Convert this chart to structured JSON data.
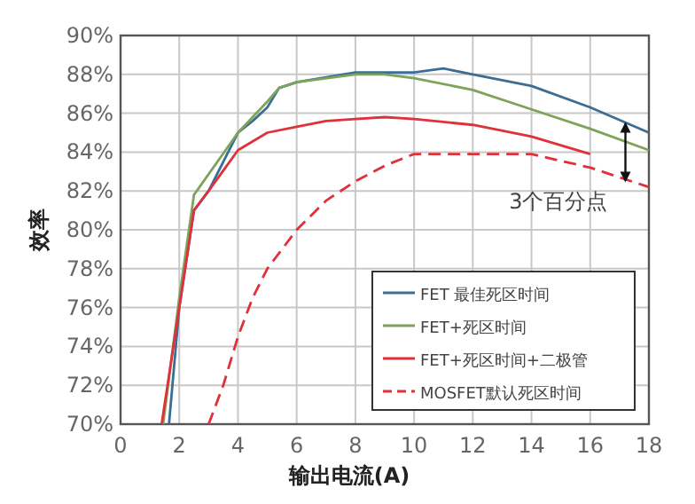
{
  "chart_data": {
    "type": "line",
    "xlabel": "输出电流(A)",
    "ylabel": "效率",
    "xlim": [
      0,
      18
    ],
    "xticks": [
      0,
      2,
      4,
      6,
      8,
      10,
      12,
      14,
      16,
      18
    ],
    "ylim": [
      70,
      90
    ],
    "yticks": [
      {
        "value": 70,
        "label": "70%"
      },
      {
        "value": 72,
        "label": "72%"
      },
      {
        "value": 74,
        "label": "74%"
      },
      {
        "value": 76,
        "label": "76%"
      },
      {
        "value": 78,
        "label": "78%"
      },
      {
        "value": 80,
        "label": "80%"
      },
      {
        "value": 82,
        "label": "82%"
      },
      {
        "value": 84,
        "label": "84%"
      },
      {
        "value": 86,
        "label": "86%"
      },
      {
        "value": 88,
        "label": "88%"
      },
      {
        "value": 90,
        "label": "90%"
      }
    ],
    "grid": true,
    "legend": "bottom right",
    "annotations": [
      {
        "text": "3个百分点",
        "x": 17.2,
        "y": 84
      }
    ],
    "series": [
      {
        "name": "FET 最佳死区时间",
        "color": "#3a6e96",
        "line_style": "solid",
        "x": [
          1.65,
          2,
          2.5,
          3,
          4,
          4.5,
          5,
          5.4,
          6,
          8,
          10,
          11,
          12,
          14,
          16,
          18
        ],
        "values": [
          70,
          76,
          81,
          82,
          85,
          85.6,
          86.3,
          87.3,
          87.6,
          88.1,
          88.1,
          88.3,
          88,
          87.4,
          86.3,
          85
        ]
      },
      {
        "name": "FET+死区时间",
        "color": "#7ea35a",
        "line_style": "solid",
        "x": [
          1.45,
          2,
          2.5,
          4,
          5,
          5.4,
          6,
          8,
          9,
          10,
          12,
          14,
          16,
          18
        ],
        "values": [
          70,
          76.5,
          81.8,
          85,
          86.6,
          87.3,
          87.6,
          88,
          88,
          87.8,
          87.2,
          86.2,
          85.2,
          84.1
        ]
      },
      {
        "name": "FET+死区时间+二极管",
        "color": "#e0303a",
        "line_style": "solid",
        "x": [
          1.4,
          2,
          2.5,
          3,
          4,
          5,
          6,
          7,
          8,
          9,
          10,
          12,
          14,
          16
        ],
        "values": [
          70,
          76,
          81,
          82,
          84.1,
          85,
          85.3,
          85.6,
          85.7,
          85.8,
          85.7,
          85.4,
          84.8,
          83.9
        ]
      },
      {
        "name": "MOSFET默认死区时间",
        "color": "#e0303a",
        "line_style": "dashed",
        "x": [
          3,
          3.5,
          4,
          4.5,
          5,
          5.5,
          6,
          7,
          8,
          9,
          10,
          12,
          14,
          16,
          18
        ],
        "values": [
          70,
          72,
          74.5,
          76.5,
          78,
          79,
          80,
          81.5,
          82.5,
          83.3,
          83.9,
          83.9,
          83.9,
          83.2,
          82.2
        ]
      }
    ]
  }
}
